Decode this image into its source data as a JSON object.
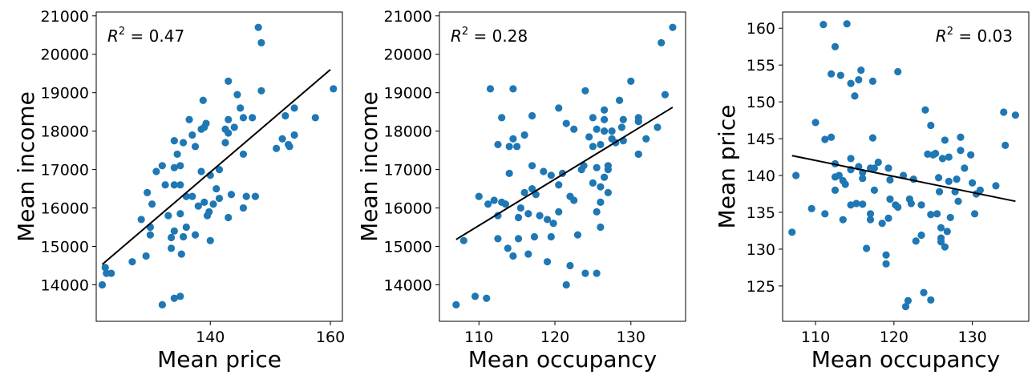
{
  "chart_data": [
    {
      "type": "scatter",
      "xlabel": "Mean price",
      "ylabel": "Mean income",
      "annotation": {
        "prefix": "R",
        "superscript": "2",
        "suffix": " = 0.47"
      },
      "xlim": [
        121,
        162
      ],
      "ylim": [
        13050,
        21100
      ],
      "xticks": [
        140,
        160
      ],
      "yticks": [
        14000,
        15000,
        16000,
        17000,
        18000,
        19000,
        20000,
        21000
      ],
      "fit_line": {
        "x": [
          122,
          160
        ],
        "y": [
          14530,
          19600
        ]
      },
      "points": [
        [
          122,
          14000
        ],
        [
          122.5,
          14450
        ],
        [
          122.7,
          14300
        ],
        [
          123.5,
          14300
        ],
        [
          127,
          14600
        ],
        [
          128.5,
          15700
        ],
        [
          129.3,
          14750
        ],
        [
          129.5,
          16400
        ],
        [
          130,
          15500
        ],
        [
          130,
          15300
        ],
        [
          130.3,
          16100
        ],
        [
          131,
          16950
        ],
        [
          132,
          17100
        ],
        [
          132,
          13480
        ],
        [
          132.5,
          16600
        ],
        [
          133,
          15800
        ],
        [
          133.5,
          14950
        ],
        [
          133.5,
          15230
        ],
        [
          134,
          17750
        ],
        [
          134,
          17050
        ],
        [
          134,
          16600
        ],
        [
          134,
          15400
        ],
        [
          134,
          13650
        ],
        [
          134.5,
          17400
        ],
        [
          135,
          17100
        ],
        [
          135,
          16600
        ],
        [
          135,
          15850
        ],
        [
          135,
          13700
        ],
        [
          135.2,
          14800
        ],
        [
          135.5,
          17700
        ],
        [
          135.5,
          15250
        ],
        [
          136,
          16300
        ],
        [
          136,
          15500
        ],
        [
          136.5,
          18300
        ],
        [
          137,
          17900
        ],
        [
          137,
          16300
        ],
        [
          137.5,
          17600
        ],
        [
          137.5,
          15300
        ],
        [
          138,
          16050
        ],
        [
          138.5,
          16950
        ],
        [
          138.5,
          18050
        ],
        [
          138.8,
          18800
        ],
        [
          139,
          18100
        ],
        [
          139,
          16150
        ],
        [
          139.3,
          18200
        ],
        [
          139.5,
          15800
        ],
        [
          139.8,
          15900
        ],
        [
          140,
          15150
        ],
        [
          140,
          16850
        ],
        [
          140.5,
          16100
        ],
        [
          141,
          16500
        ],
        [
          141.5,
          16250
        ],
        [
          141.5,
          17000
        ],
        [
          142.5,
          17700
        ],
        [
          142.5,
          18050
        ],
        [
          143,
          15750
        ],
        [
          143,
          17950
        ],
        [
          143,
          18300
        ],
        [
          143,
          19300
        ],
        [
          143.5,
          16350
        ],
        [
          144,
          18100
        ],
        [
          144.5,
          18950
        ],
        [
          145,
          18600
        ],
        [
          145.5,
          16000
        ],
        [
          145.5,
          18350
        ],
        [
          145.5,
          17400
        ],
        [
          146,
          16300
        ],
        [
          147,
          18350
        ],
        [
          147.5,
          16300
        ],
        [
          148,
          20700
        ],
        [
          148.5,
          20300
        ],
        [
          148.5,
          19050
        ],
        [
          151,
          17550
        ],
        [
          152,
          17800
        ],
        [
          152.5,
          18400
        ],
        [
          153,
          17650
        ],
        [
          153.2,
          17600
        ],
        [
          154,
          17900
        ],
        [
          154,
          18600
        ],
        [
          157.5,
          18350
        ],
        [
          160.5,
          19100
        ]
      ]
    },
    {
      "type": "scatter",
      "xlabel": "Mean occupancy",
      "ylabel": "Mean income",
      "annotation": {
        "prefix": "R",
        "superscript": "2",
        "suffix": " = 0.28"
      },
      "xlim": [
        104.8,
        137.2
      ],
      "ylim": [
        13050,
        21100
      ],
      "xticks": [
        110,
        120,
        130
      ],
      "yticks": [
        14000,
        15000,
        16000,
        17000,
        18000,
        19000,
        20000,
        21000
      ],
      "fit_line": {
        "x": [
          107,
          135.5
        ],
        "y": [
          15180,
          18620
        ]
      },
      "points": [
        [
          107,
          13480
        ],
        [
          108,
          15150
        ],
        [
          109.5,
          13700
        ],
        [
          110,
          16300
        ],
        [
          111,
          13650
        ],
        [
          111.2,
          16100
        ],
        [
          111.5,
          19100
        ],
        [
          112,
          16200
        ],
        [
          112.5,
          15800
        ],
        [
          112.5,
          15200
        ],
        [
          112.5,
          17650
        ],
        [
          113,
          18350
        ],
        [
          113,
          16150
        ],
        [
          113.5,
          16100
        ],
        [
          113.8,
          14950
        ],
        [
          114,
          17600
        ],
        [
          114,
          16900
        ],
        [
          114.5,
          19100
        ],
        [
          114.5,
          17800
        ],
        [
          114.5,
          14750
        ],
        [
          115,
          17600
        ],
        [
          115.2,
          15750
        ],
        [
          115.2,
          15200
        ],
        [
          115.5,
          16000
        ],
        [
          116,
          17900
        ],
        [
          116,
          16400
        ],
        [
          116.5,
          15850
        ],
        [
          116.5,
          14800
        ],
        [
          117,
          17100
        ],
        [
          117,
          18400
        ],
        [
          117,
          16500
        ],
        [
          117.3,
          15250
        ],
        [
          117.5,
          16350
        ],
        [
          118,
          15800
        ],
        [
          118.5,
          16950
        ],
        [
          119,
          15700
        ],
        [
          119,
          14600
        ],
        [
          119.5,
          15250
        ],
        [
          119.5,
          16850
        ],
        [
          119.8,
          15600
        ],
        [
          120.5,
          15900
        ],
        [
          120.5,
          16600
        ],
        [
          120.5,
          18600
        ],
        [
          121,
          16900
        ],
        [
          121.5,
          18200
        ],
        [
          121.5,
          14000
        ],
        [
          122,
          14500
        ],
        [
          122,
          16300
        ],
        [
          122.5,
          16200
        ],
        [
          122.5,
          18050
        ],
        [
          123,
          15300
        ],
        [
          123.5,
          17000
        ],
        [
          123.8,
          17100
        ],
        [
          124,
          19050
        ],
        [
          124,
          14300
        ],
        [
          124.5,
          17850
        ],
        [
          125,
          16650
        ],
        [
          125,
          17600
        ],
        [
          125,
          18350
        ],
        [
          125.5,
          14300
        ],
        [
          125.5,
          15900
        ],
        [
          125.5,
          17050
        ],
        [
          125.5,
          18050
        ],
        [
          126,
          16550
        ],
        [
          126,
          17650
        ],
        [
          126,
          16150
        ],
        [
          126,
          15500
        ],
        [
          126.5,
          18000
        ],
        [
          126.5,
          18300
        ],
        [
          126.5,
          18550
        ],
        [
          126.5,
          16800
        ],
        [
          127,
          17100
        ],
        [
          127,
          16400
        ],
        [
          127,
          17000
        ],
        [
          127.5,
          17800
        ],
        [
          127.5,
          18000
        ],
        [
          128,
          17700
        ],
        [
          128.5,
          18800
        ],
        [
          128.8,
          18100
        ],
        [
          129,
          17750
        ],
        [
          129,
          18300
        ],
        [
          130,
          19300
        ],
        [
          131,
          18350
        ],
        [
          131,
          17400
        ],
        [
          131,
          18250
        ],
        [
          131,
          17400
        ],
        [
          132,
          17800
        ],
        [
          133.5,
          18100
        ],
        [
          134,
          20300
        ],
        [
          134.5,
          18950
        ],
        [
          135.5,
          20700
        ]
      ]
    },
    {
      "type": "scatter",
      "xlabel": "Mean occupancy",
      "ylabel": "Mean price",
      "annotation": {
        "prefix": "R",
        "superscript": "2",
        "suffix": " = 0.03"
      },
      "xlim": [
        105.8,
        137.2
      ],
      "ylim": [
        120.2,
        162.2
      ],
      "xticks": [
        110,
        120,
        130
      ],
      "yticks": [
        125,
        130,
        135,
        140,
        145,
        150,
        155,
        160
      ],
      "fit_line": {
        "x": [
          107,
          135.5
        ],
        "y": [
          142.7,
          136.5
        ]
      },
      "points": [
        [
          107,
          132.3
        ],
        [
          107.5,
          140
        ],
        [
          109.5,
          135.5
        ],
        [
          110,
          147.2
        ],
        [
          111,
          160.5
        ],
        [
          111.2,
          134.8
        ],
        [
          111.2,
          144.9
        ],
        [
          112,
          153.8
        ],
        [
          112,
          145.2
        ],
        [
          112.5,
          157.5
        ],
        [
          112.5,
          138
        ],
        [
          112.5,
          139.8
        ],
        [
          112.5,
          141.6
        ],
        [
          113,
          140
        ],
        [
          113.2,
          153.6
        ],
        [
          113.5,
          139.3
        ],
        [
          113.5,
          134
        ],
        [
          113.8,
          138.8
        ],
        [
          114,
          160.6
        ],
        [
          114.5,
          152.5
        ],
        [
          114.5,
          142.3
        ],
        [
          114.5,
          140.8
        ],
        [
          114.5,
          136
        ],
        [
          115,
          150.8
        ],
        [
          115.2,
          136.2
        ],
        [
          115.5,
          153
        ],
        [
          115.5,
          141.2
        ],
        [
          115.8,
          154.3
        ],
        [
          116,
          140.4
        ],
        [
          116,
          136.1
        ],
        [
          116,
          139.6
        ],
        [
          116.5,
          130.1
        ],
        [
          117,
          141
        ],
        [
          117,
          134.8
        ],
        [
          117,
          134
        ],
        [
          117.3,
          145.1
        ],
        [
          117.3,
          152.8
        ],
        [
          117.5,
          138
        ],
        [
          117.5,
          141
        ],
        [
          118,
          141.8
        ],
        [
          118.5,
          133.5
        ],
        [
          119,
          128
        ],
        [
          119,
          129.2
        ],
        [
          119.3,
          141
        ],
        [
          119.3,
          134.2
        ],
        [
          119.5,
          136.8
        ],
        [
          119.5,
          139.4
        ],
        [
          120.2,
          136
        ],
        [
          120.5,
          154.1
        ],
        [
          120.5,
          135.7
        ],
        [
          121.2,
          140
        ],
        [
          121.5,
          122.2
        ],
        [
          121.8,
          123
        ],
        [
          122,
          136.8
        ],
        [
          122.2,
          136.2
        ],
        [
          122.5,
          139.5
        ],
        [
          122.8,
          131.1
        ],
        [
          123.5,
          131.9
        ],
        [
          123.5,
          136
        ],
        [
          123.8,
          124.1
        ],
        [
          124,
          148.9
        ],
        [
          124.3,
          142.9
        ],
        [
          124.7,
          123.1
        ],
        [
          124.7,
          146.8
        ],
        [
          124.7,
          134.7
        ],
        [
          125,
          142.8
        ],
        [
          125.3,
          143
        ],
        [
          125.5,
          134.8
        ],
        [
          125.7,
          139.7
        ],
        [
          125.8,
          137.8
        ],
        [
          126,
          131.5
        ],
        [
          126,
          131
        ],
        [
          126,
          132.9
        ],
        [
          126.2,
          142.3
        ],
        [
          126.5,
          130.3
        ],
        [
          126.5,
          144.8
        ],
        [
          126.8,
          132.4
        ],
        [
          127,
          139.2
        ],
        [
          127,
          142.5
        ],
        [
          127.2,
          134.3
        ],
        [
          127.8,
          137.8
        ],
        [
          128,
          139.5
        ],
        [
          128.2,
          136.5
        ],
        [
          128.5,
          143.4
        ],
        [
          128.5,
          145.2
        ],
        [
          129,
          141
        ],
        [
          129.8,
          142.8
        ],
        [
          130,
          139
        ],
        [
          130.3,
          134.8
        ],
        [
          130.5,
          137.5
        ],
        [
          131,
          138
        ],
        [
          133,
          138.6
        ],
        [
          134,
          148.6
        ],
        [
          134.2,
          144.1
        ],
        [
          135.5,
          148.2
        ]
      ]
    }
  ]
}
